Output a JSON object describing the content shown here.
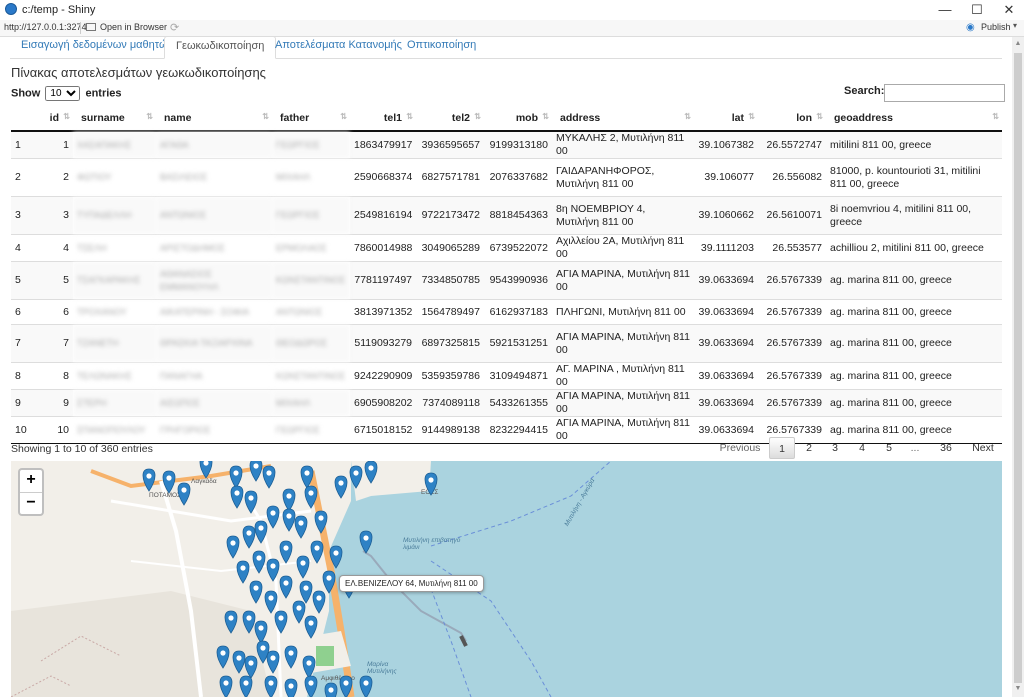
{
  "window": {
    "title": "c:/temp - Shiny",
    "minimize": "—",
    "maximize": "☐",
    "close": "✕"
  },
  "toolbar": {
    "url": "http://127.0.0.1:3274",
    "open_in_browser": "Open in Browser",
    "publish": "Publish"
  },
  "tabs": [
    {
      "label": "Εισαγωγή δεδομένων μαθητών",
      "active": false
    },
    {
      "label": "Γεωκωδικοποίηση",
      "active": true
    },
    {
      "label": "Αποτελέσματα Κατανομής",
      "active": false
    },
    {
      "label": "Οπτικοποίηση",
      "active": false
    }
  ],
  "section_title": "Πίνακας αποτελεσμάτων γεωκωδικοποίησης",
  "show_entries": {
    "prefix": "Show",
    "value": "10",
    "suffix": "entries"
  },
  "search": {
    "label": "Search:",
    "value": ""
  },
  "table": {
    "columns": [
      "",
      "id",
      "surname",
      "name",
      "father",
      "tel1",
      "tel2",
      "mob",
      "address",
      "lat",
      "lon",
      "geoaddress"
    ],
    "rows": [
      [
        "1",
        "1",
        "ΧΑΣΑΠΑΚΗΣ",
        "ΑΓΑΘΑ",
        "ΓΕΩΡΓΙΟΣ",
        "1863479917",
        "3936595657",
        "9199313180",
        "ΜΥΚΑΛΗΣ 2, Μυτιλήνη 811 00",
        "39.1067382",
        "26.5572747",
        "mitilini 811 00, greece"
      ],
      [
        "2",
        "2",
        "ΦΩΤΙΟΥ",
        "ΒΑΣΙΛΕΙΟΣ",
        "ΜΙΧΑΗΛ",
        "2590668374",
        "6827571781",
        "2076337682",
        "ΓΑΙΔΑΡΑΝΗΦΟΡΟΣ, Μυτιλήνη 811 00",
        "39.106077",
        "26.556082",
        "81000, p. kountourioti 31, mitilini 811 00, greece"
      ],
      [
        "3",
        "3",
        "ΤΥΠΑΔΕΛΛΗ",
        "ΑΝΤΩΝΙΟΣ",
        "ΓΕΩΡΓΙΟΣ",
        "2549816194",
        "9722173472",
        "8818454363",
        "8η ΝΟΕΜΒΡΙΟΥ 4, Μυτιλήνη 811 00",
        "39.1060662",
        "26.5610071",
        "8i noemvriou 4, mitilini 811 00, greece"
      ],
      [
        "4",
        "4",
        "ΤΣΕΛΗ",
        "ΑΡΙΣΤΟΔΗΜΟΣ",
        "ΕΡΜΟΛΑΟΣ",
        "7860014988",
        "3049065289",
        "6739522072",
        "Αχιλλείου 2Α, Μυτιλήνη 811 00",
        "39.1111203",
        "26.553577",
        "achilliou 2, mitilini 811 00, greece"
      ],
      [
        "5",
        "5",
        "ΤΣΑΓΚΑΡΑΚΗΣ",
        "ΑΘΑΝΑΣΙΟΣ ΕΜΜΑΝΟΥΗΛ",
        "ΚΩΝΣΤΑΝΤΙΝΟΣ",
        "7781197497",
        "7334850785",
        "9543990936",
        "ΑΓΙΑ ΜΑΡΙΝΑ, Μυτιλήνη 811 00",
        "39.0633694",
        "26.5767339",
        "ag. marina 811 00, greece"
      ],
      [
        "6",
        "6",
        "ΤΡΟΧΑΝΟΥ",
        "ΑΙΚΑΤΕΡΙΝΗ - ΣΟΦΙΑ",
        "ΑΝΤΩΝΙΟΣ",
        "3813971352",
        "1564789497",
        "6162937183",
        "ΠΛΗΓΩΝΙ, Μυτιλήνη 811 00",
        "39.0633694",
        "26.5767339",
        "ag. marina 811 00, greece"
      ],
      [
        "7",
        "7",
        "ΤΖΑΝΕΤΗ",
        "ΘΡΑΣΚΙΑ ΤΑΞΙΑΡΧΙΝΑ",
        "ΘΕΟΔΩΡΟΣ",
        "5119093279",
        "6897325815",
        "5921531251",
        "ΑΓΙΑ ΜΑΡΙΝΑ, Μυτιλήνη 811 00",
        "39.0633694",
        "26.5767339",
        "ag. marina 811 00, greece"
      ],
      [
        "8",
        "8",
        "ΤΕΛΩΝΑΚΗΣ",
        "ΠΑΝΑΓΗΑ",
        "ΚΩΝΣΤΑΝΤΙΝΟΣ",
        "9242290909",
        "5359359786",
        "3109494871",
        "ΑΓ. ΜΑΡΙΝΑ , Μυτιλήνη 811 00",
        "39.0633694",
        "26.5767339",
        "ag. marina 811 00, greece"
      ],
      [
        "9",
        "9",
        "ΣΤΕΡΗ",
        "ΑΙΣΩΠΟΣ",
        "ΜΙΧΑΗΛ",
        "6905908202",
        "7374089118",
        "5433261355",
        "ΑΓΙΑ ΜΑΡΙΝΑ, Μυτιλήνη 811 00",
        "39.0633694",
        "26.5767339",
        "ag. marina 811 00, greece"
      ],
      [
        "10",
        "10",
        "ΣΠΑΝΟΠΟΥΛΟΥ",
        "ΓΡΗΓΟΡΙΟΣ",
        "ΓΕΩΡΓΙΟΣ",
        "6715018152",
        "9144989138",
        "8232294415",
        "ΑΓΙΑ ΜΑΡΙΝΑ, Μυτιλήνη 811 00",
        "39.0633694",
        "26.5767339",
        "ag. marina 811 00, greece"
      ]
    ]
  },
  "info": "Showing 1 to 10 of 360 entries",
  "pagination": {
    "previous": "Previous",
    "pages": [
      "1",
      "2",
      "3",
      "4",
      "5",
      "...",
      "36"
    ],
    "current": "1",
    "next": "Next"
  },
  "map": {
    "zoom_in": "+",
    "zoom_out": "−",
    "popup": "ΕΛ.ΒΕΝΙΖΕΛΟΥ 64, Μυτιλήνη 811 00",
    "labels": [
      "ΠΟΤΑΜΟΣ",
      "Λαγκάδα",
      "ΕΟΣΣ",
      "Μυτιλήνη επιβατηγό λιμάνι",
      "Μυτιλήνη - Αγκύρα",
      "Μαρίνα Μυτιλήνης",
      "Αμφιθέατρο"
    ],
    "colors": {
      "water": "#aad3df",
      "land": "#f2efe9",
      "marker": "#2e82c5",
      "road": "#f6b26b"
    }
  }
}
